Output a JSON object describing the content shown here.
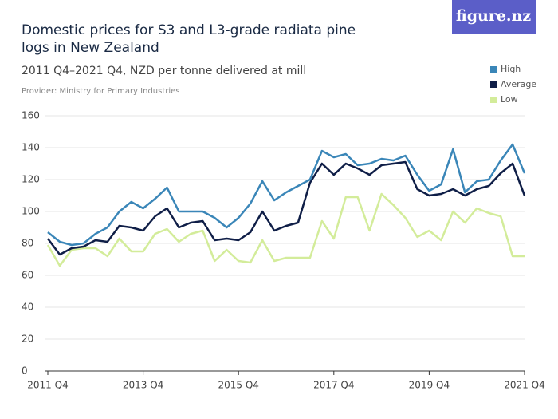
{
  "brand": "figure.nz",
  "chart_data": {
    "type": "line",
    "title": "Domestic prices for S3 and L3-grade radiata pine logs in New Zealand",
    "subtitle": "2011 Q4–2021 Q4, NZD per tonne delivered at mill",
    "provider": "Provider: Ministry for Primary Industries",
    "categories": [
      "2011 Q4",
      null,
      null,
      null,
      null,
      null,
      null,
      null,
      "2013 Q4",
      null,
      null,
      null,
      null,
      null,
      null,
      null,
      "2015 Q4",
      null,
      null,
      null,
      null,
      null,
      null,
      null,
      "2017 Q4",
      null,
      null,
      null,
      null,
      null,
      null,
      null,
      "2019 Q4",
      null,
      null,
      null,
      null,
      null,
      null,
      null,
      "2021 Q4"
    ],
    "series": [
      {
        "name": "High",
        "color": "#3a86b8",
        "values": [
          87,
          81,
          79,
          80,
          86,
          90,
          100,
          106,
          102,
          108,
          115,
          100,
          100,
          100,
          96,
          90,
          96,
          105,
          119,
          107,
          112,
          116,
          120,
          138,
          134,
          136,
          129,
          130,
          133,
          132,
          135,
          123,
          113,
          117,
          139,
          112,
          119,
          120,
          132,
          142,
          124
        ]
      },
      {
        "name": "Average",
        "color": "#0f1e47",
        "values": [
          83,
          73,
          77,
          78,
          82,
          81,
          91,
          90,
          88,
          97,
          102,
          90,
          93,
          94,
          82,
          83,
          82,
          87,
          100,
          88,
          91,
          93,
          118,
          130,
          123,
          130,
          127,
          123,
          129,
          130,
          131,
          114,
          110,
          111,
          114,
          110,
          114,
          116,
          124,
          130,
          110
        ]
      },
      {
        "name": "Low",
        "color": "#d3ec9a",
        "values": [
          79,
          66,
          76,
          77,
          77,
          72,
          83,
          75,
          75,
          86,
          89,
          81,
          86,
          88,
          69,
          76,
          69,
          68,
          82,
          69,
          71,
          71,
          71,
          94,
          83,
          109,
          109,
          88,
          111,
          104,
          96,
          84,
          88,
          82,
          100,
          93,
          102,
          99,
          97,
          72,
          72
        ]
      }
    ],
    "ylim": [
      0,
      160
    ],
    "yticks": [
      0,
      20,
      40,
      60,
      80,
      100,
      120,
      140,
      160
    ],
    "grid": true,
    "legend": "top-right"
  }
}
